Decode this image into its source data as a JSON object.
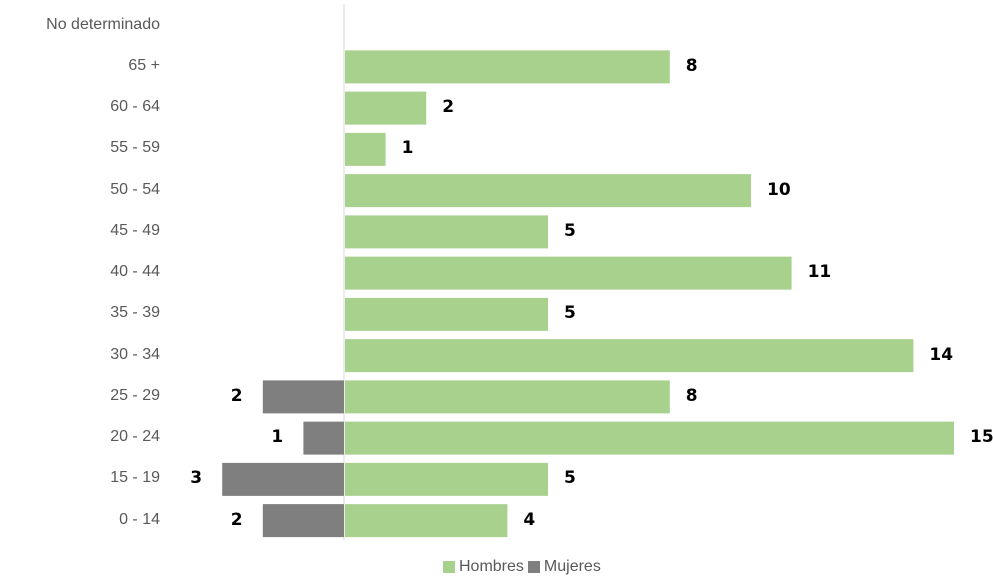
{
  "chart_data": {
    "type": "bar",
    "orientation": "horizontal",
    "categories": [
      "No determinado",
      "65 +",
      "60 - 64",
      "55 - 59",
      "50 - 54",
      "45 - 49",
      "40 - 44",
      "35 - 39",
      "30 - 34",
      "25 - 29",
      "20 - 24",
      "15 - 19",
      "0 - 14"
    ],
    "series": [
      {
        "name": "Hombres",
        "color": "#a9d18e",
        "values": [
          null,
          8,
          2,
          1,
          10,
          5,
          11,
          5,
          14,
          8,
          15,
          5,
          4
        ]
      },
      {
        "name": "Mujeres",
        "color": "#7f7f7f",
        "values": [
          null,
          null,
          null,
          null,
          null,
          null,
          null,
          null,
          null,
          2,
          1,
          3,
          2
        ]
      }
    ],
    "legend": "bottom",
    "grid": false
  }
}
